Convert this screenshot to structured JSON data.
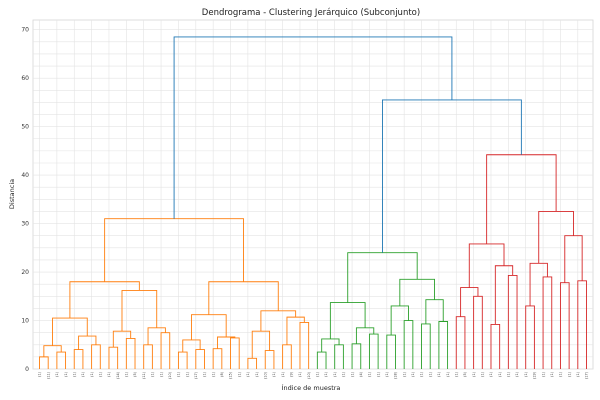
{
  "chart_data": {
    "type": "dendrogram",
    "title": "Dendrograma - Clustering Jerárquico (Subconjunto)",
    "xlabel": "Índice de muestra",
    "ylabel": "Distancia",
    "ylim": [
      0,
      72
    ],
    "yticks": [
      "0",
      "10",
      "20",
      "30",
      "40",
      "50",
      "60",
      "70"
    ],
    "grid": true,
    "leaf_count": 64,
    "xtick_labels": [
      "(1)",
      "(11)",
      "(1)",
      "(1)",
      "(1)",
      "(1)",
      "(1)",
      "(1)",
      "(1)",
      "(14)",
      "(1)",
      "(5)",
      "(11)",
      "(1)",
      "(1)",
      "(10)",
      "(1)",
      "(1)",
      "(17)",
      "(1)",
      "(1)",
      "(8)",
      "(15)",
      "(1)",
      "(1)",
      "(1)",
      "(10)",
      "(1)",
      "(1)",
      "(9)",
      "(1)",
      "(10)",
      "(1)",
      "(1)",
      "(1)",
      "(1)",
      "(1)",
      "(4)",
      "(1)",
      "(1)",
      "(1)",
      "(18)",
      "(1)",
      "(1)",
      "(1)",
      "(1)",
      "(1)",
      "(1)",
      "(1)",
      "(5)",
      "(1)",
      "(1)",
      "(1)",
      "(1)",
      "(1)",
      "(1)",
      "(1)",
      "(19)",
      "(1)",
      "(1)",
      "(1)",
      "(1)",
      "(1)",
      "(17)"
    ],
    "colors": {
      "orange": "#ff7f0e",
      "green": "#2ca02c",
      "red": "#d62728",
      "root": "#1f77b4"
    },
    "merges": [
      {
        "l": 0,
        "r": 1,
        "h": 2.5,
        "c": "orange"
      },
      {
        "l": 2,
        "r": 3,
        "h": 3.5,
        "c": "orange"
      },
      {
        "l": "m0",
        "r": "m1",
        "h": 4.8,
        "c": "orange"
      },
      {
        "l": 4,
        "r": 5,
        "h": 4.0,
        "c": "orange"
      },
      {
        "l": 6,
        "r": 7,
        "h": 5.0,
        "c": "orange"
      },
      {
        "l": "m3",
        "r": "m4",
        "h": 6.8,
        "c": "orange"
      },
      {
        "l": "m2",
        "r": "m5",
        "h": 10.5,
        "c": "orange"
      },
      {
        "l": 8,
        "r": 9,
        "h": 4.5,
        "c": "orange"
      },
      {
        "l": 10,
        "r": 11,
        "h": 6.3,
        "c": "orange"
      },
      {
        "l": "m7",
        "r": "m8",
        "h": 7.8,
        "c": "orange"
      },
      {
        "l": 12,
        "r": 13,
        "h": 5.0,
        "c": "orange"
      },
      {
        "l": 14,
        "r": 15,
        "h": 7.5,
        "c": "orange"
      },
      {
        "l": "m10",
        "r": "m11",
        "h": 8.5,
        "c": "orange"
      },
      {
        "l": "m9",
        "r": "m12",
        "h": 16.2,
        "c": "orange"
      },
      {
        "l": "m6",
        "r": "m13",
        "h": 18.0,
        "c": "orange"
      },
      {
        "l": 16,
        "r": 17,
        "h": 3.5,
        "c": "orange"
      },
      {
        "l": 18,
        "r": 19,
        "h": 4.0,
        "c": "orange"
      },
      {
        "l": "m15",
        "r": "m16",
        "h": 6.0,
        "c": "orange"
      },
      {
        "l": 20,
        "r": 21,
        "h": 4.2,
        "c": "orange"
      },
      {
        "l": 22,
        "r": 23,
        "h": 6.4,
        "c": "orange"
      },
      {
        "l": "m18",
        "r": "m19",
        "h": 6.6,
        "c": "orange"
      },
      {
        "l": "m17",
        "r": "m20",
        "h": 11.2,
        "c": "orange"
      },
      {
        "l": 24,
        "r": 25,
        "h": 2.2,
        "c": "orange"
      },
      {
        "l": 26,
        "r": 27,
        "h": 3.8,
        "c": "orange"
      },
      {
        "l": "m22",
        "r": "m23",
        "h": 7.8,
        "c": "orange"
      },
      {
        "l": 28,
        "r": 29,
        "h": 5.0,
        "c": "orange"
      },
      {
        "l": 30,
        "r": 31,
        "h": 9.6,
        "c": "orange"
      },
      {
        "l": "m25",
        "r": "m26",
        "h": 10.7,
        "c": "orange"
      },
      {
        "l": "m24",
        "r": "m27",
        "h": 12.0,
        "c": "orange"
      },
      {
        "l": "m21",
        "r": "m28",
        "h": 18.0,
        "c": "orange"
      },
      {
        "l": "m14",
        "r": "m29",
        "h": 31.0,
        "c": "orange"
      },
      {
        "l": 32,
        "r": 33,
        "h": 3.5,
        "c": "green"
      },
      {
        "l": 34,
        "r": 35,
        "h": 5.0,
        "c": "green"
      },
      {
        "l": "m31",
        "r": "m32",
        "h": 6.2,
        "c": "green"
      },
      {
        "l": 36,
        "r": 37,
        "h": 5.2,
        "c": "green"
      },
      {
        "l": 38,
        "r": 39,
        "h": 7.2,
        "c": "green"
      },
      {
        "l": "m34",
        "r": "m35",
        "h": 8.5,
        "c": "green"
      },
      {
        "l": "m33",
        "r": "m36",
        "h": 13.7,
        "c": "green"
      },
      {
        "l": 40,
        "r": 41,
        "h": 7.0,
        "c": "green"
      },
      {
        "l": 42,
        "r": 43,
        "h": 10.0,
        "c": "green"
      },
      {
        "l": "m38",
        "r": "m39",
        "h": 13.0,
        "c": "green"
      },
      {
        "l": 44,
        "r": 45,
        "h": 9.3,
        "c": "green"
      },
      {
        "l": 46,
        "r": 47,
        "h": 9.8,
        "c": "green"
      },
      {
        "l": "m41",
        "r": "m42",
        "h": 14.3,
        "c": "green"
      },
      {
        "l": "m40",
        "r": "m43",
        "h": 18.5,
        "c": "green"
      },
      {
        "l": "m37",
        "r": "m44",
        "h": 24.0,
        "c": "green"
      },
      {
        "l": 48,
        "r": 49,
        "h": 10.8,
        "c": "red"
      },
      {
        "l": 50,
        "r": 51,
        "h": 15.0,
        "c": "red"
      },
      {
        "l": "m46",
        "r": "m47",
        "h": 16.8,
        "c": "red"
      },
      {
        "l": 52,
        "r": 53,
        "h": 9.2,
        "c": "red"
      },
      {
        "l": 54,
        "r": 55,
        "h": 19.3,
        "c": "red"
      },
      {
        "l": "m49",
        "r": "m50",
        "h": 21.3,
        "c": "red"
      },
      {
        "l": "m48",
        "r": "m51",
        "h": 25.8,
        "c": "red"
      },
      {
        "l": 56,
        "r": 57,
        "h": 13.0,
        "c": "red"
      },
      {
        "l": 58,
        "r": 59,
        "h": 19.0,
        "c": "red"
      },
      {
        "l": "m53",
        "r": "m54",
        "h": 21.8,
        "c": "red"
      },
      {
        "l": 60,
        "r": 61,
        "h": 17.8,
        "c": "red"
      },
      {
        "l": 62,
        "r": 63,
        "h": 18.2,
        "c": "red"
      },
      {
        "l": "m56",
        "r": "m57",
        "h": 27.5,
        "c": "red"
      },
      {
        "l": "m55",
        "r": "m58",
        "h": 32.5,
        "c": "red"
      },
      {
        "l": "m52",
        "r": "m59",
        "h": 44.2,
        "c": "red"
      },
      {
        "l": "m45",
        "r": "m60",
        "h": 55.5,
        "c": "root"
      },
      {
        "l": "m30",
        "r": "m61",
        "h": 68.5,
        "c": "root"
      }
    ]
  }
}
